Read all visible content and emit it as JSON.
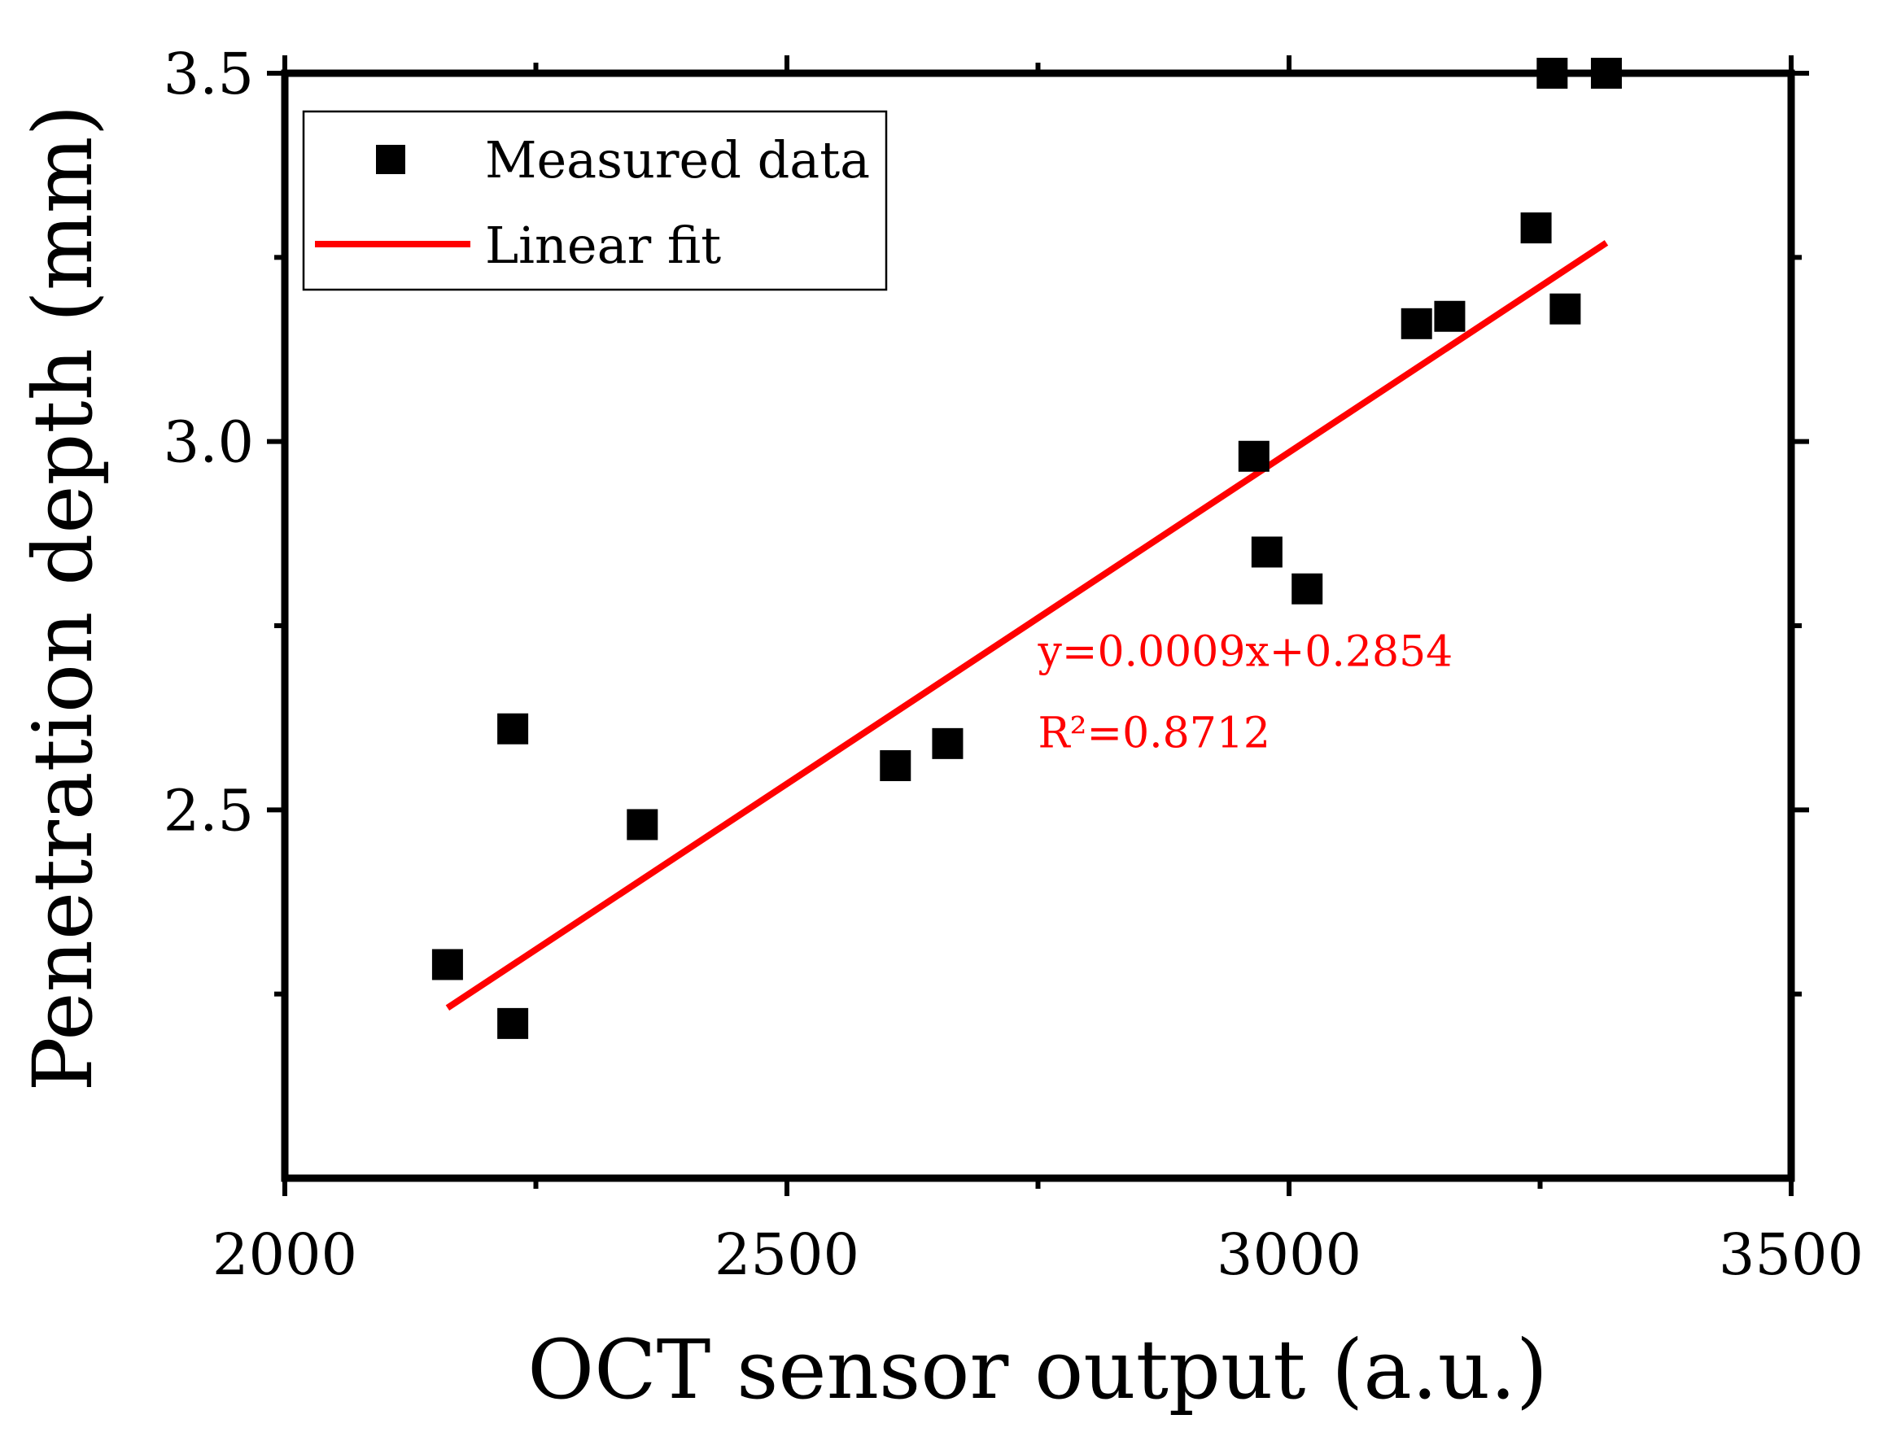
{
  "chart_data": {
    "type": "scatter",
    "title": "",
    "xlabel": "OCT sensor output (a.u.)",
    "ylabel": "Penetration depth (mm)",
    "xlim": [
      2000,
      3500
    ],
    "ylim": [
      2.0,
      3.5
    ],
    "xticks": [
      {
        "value": 2000,
        "label": "2000"
      },
      {
        "value": 2500,
        "label": "2500"
      },
      {
        "value": 3000,
        "label": "3000"
      },
      {
        "value": 3500,
        "label": "3500"
      }
    ],
    "yticks": [
      {
        "value": 2.5,
        "label": "2.5"
      },
      {
        "value": 3.0,
        "label": "3.0"
      },
      {
        "value": 3.5,
        "label": "3.5"
      }
    ],
    "x_minor_ticks": [
      2250,
      2750,
      3250
    ],
    "y_minor_ticks": [
      2.25,
      2.75,
      3.25
    ],
    "series": [
      {
        "name": "Measured data",
        "kind": "scatter",
        "marker": "square",
        "color": "#000000",
        "x": [
          2162,
          2227,
          2227,
          2356,
          2608,
          2660,
          2965,
          2978,
          3018,
          3127,
          3160,
          3246,
          3262,
          3275,
          3316
        ],
        "y": [
          2.29,
          2.21,
          2.61,
          2.48,
          2.56,
          2.59,
          2.98,
          2.85,
          2.8,
          3.16,
          3.17,
          3.29,
          3.5,
          3.18,
          3.5
        ]
      },
      {
        "name": "Linear fit",
        "kind": "line",
        "color": "#ff0000",
        "x": [
          2162,
          3316
        ],
        "y": [
          2.2312,
          3.2698
        ]
      }
    ],
    "legend": {
      "position": "top-left",
      "entries": [
        {
          "label": "Measured data",
          "kind": "square",
          "color": "#000000"
        },
        {
          "label": "Linear fit",
          "kind": "line",
          "color": "#ff0000"
        }
      ]
    },
    "annotations": [
      {
        "text": "y=0.0009x+0.2854",
        "at": [
          2750,
          2.715
        ],
        "color": "#ff0000"
      },
      {
        "text": "R²=0.8712",
        "at": [
          2750,
          2.605
        ],
        "color": "#ff0000"
      }
    ],
    "grid": false
  }
}
